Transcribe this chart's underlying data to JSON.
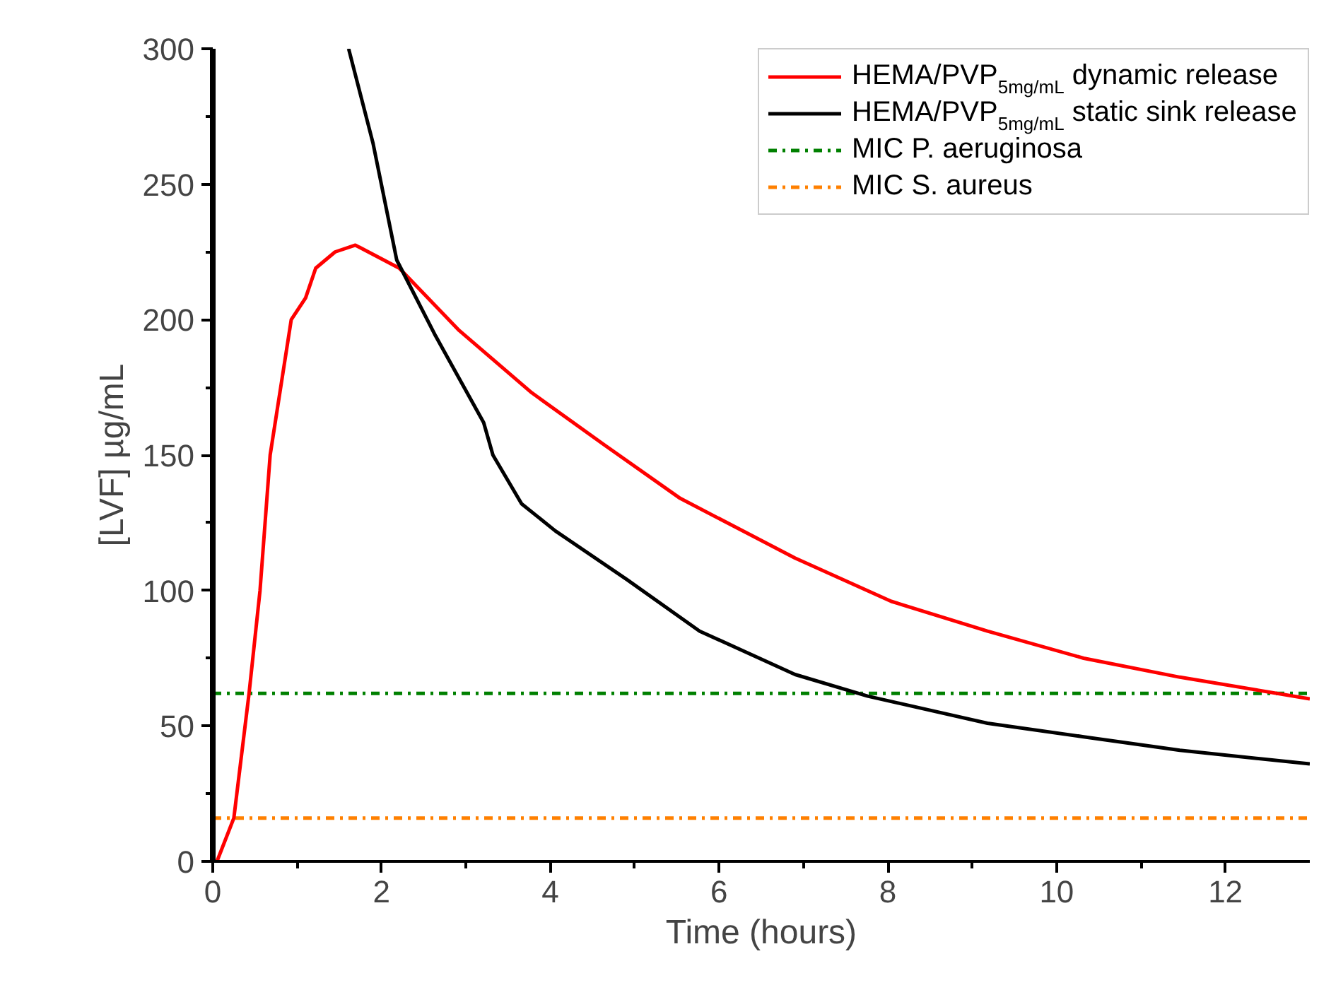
{
  "chart_data": {
    "type": "line",
    "xlabel": "Time (hours)",
    "ylabel": "[LVF] µg/mL",
    "xlim": [
      0,
      13
    ],
    "ylim": [
      0,
      300
    ],
    "xticks": [
      0,
      2,
      4,
      6,
      8,
      10,
      12
    ],
    "yticks": [
      0,
      50,
      100,
      150,
      200,
      250,
      300
    ],
    "grid": false,
    "legend": "top right",
    "line_style": "solid",
    "marker": "none",
    "series": [
      {
        "name": "HEMA/PVP$_{5mg/mL}$ dynamic release",
        "color": "#ff0000",
        "x": [
          0.05,
          0.25,
          0.43,
          0.56,
          0.68,
          0.93,
          1.1,
          1.22,
          1.45,
          1.69,
          2.21,
          2.92,
          3.78,
          4.63,
          5.54,
          6.9,
          8.04,
          9.18,
          10.32,
          11.46,
          13.0
        ],
        "values": [
          0,
          16,
          62,
          100,
          150,
          200,
          208,
          219,
          225,
          227.5,
          219,
          196,
          173,
          154,
          134,
          112,
          96,
          85,
          75,
          68,
          60
        ]
      },
      {
        "name": "HEMA/PVP$_{5mg/mL}$ static sink release",
        "color": "#000000",
        "x": [
          1.61,
          1.9,
          2.18,
          2.64,
          3.21,
          3.32,
          3.66,
          4.06,
          4.91,
          5.77,
          6.9,
          7.76,
          9.18,
          10.32,
          11.46,
          13.0
        ],
        "values": [
          300,
          265,
          222,
          194,
          162,
          150,
          132,
          122,
          104,
          85,
          69,
          61,
          51,
          46,
          41,
          36
        ]
      }
    ],
    "ref_lines": [
      {
        "axis": "y",
        "value": 62,
        "label": "MIC P. aeruginosa",
        "color": "#008000",
        "line_style": "dashdot"
      },
      {
        "axis": "y",
        "value": 16,
        "label": "MIC S. aureus",
        "color": "#ff8000",
        "line_style": "dashdot"
      }
    ]
  }
}
